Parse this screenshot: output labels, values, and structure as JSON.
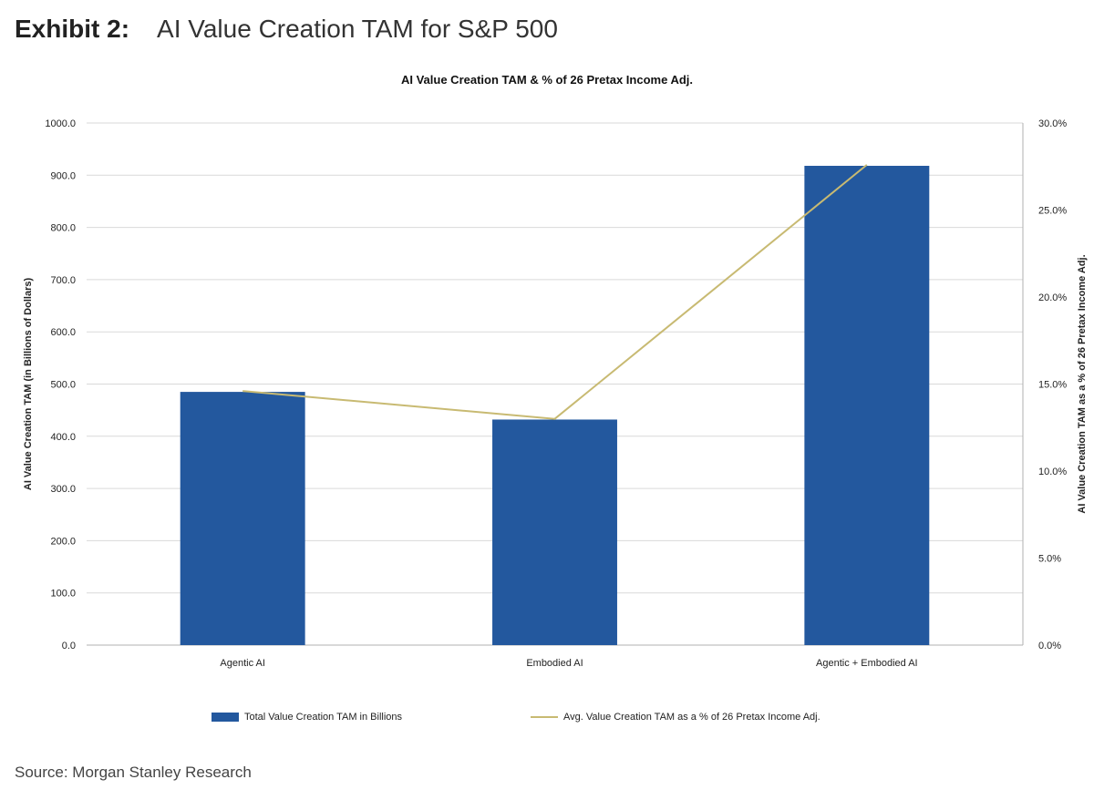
{
  "exhibit": {
    "label": "Exhibit 2:",
    "title": "AI Value Creation TAM for S&P 500"
  },
  "source": "Source: Morgan Stanley Research",
  "colors": {
    "bar": "#23589e",
    "line": "#c8ba72",
    "grid": "#d9d9d9",
    "axis": "#b0b0b0"
  },
  "chart_data": {
    "type": "bar",
    "title": "AI Value Creation TAM & % of 26 Pretax Income Adj.",
    "categories": [
      "Agentic AI",
      "Embodied AI",
      "Agentic + Embodied AI"
    ],
    "ylabel": "AI Value Creation TAM (in Billions of Dollars)",
    "y2label": "AI Value Creation TAM as a % of 26 Pretax Income Adj.",
    "ylim": [
      0,
      1000
    ],
    "y2lim": [
      0,
      30
    ],
    "yticks": [
      "0.0",
      "100.0",
      "200.0",
      "300.0",
      "400.0",
      "500.0",
      "600.0",
      "700.0",
      "800.0",
      "900.0",
      "1000.0"
    ],
    "y2ticks": [
      "0.0%",
      "5.0%",
      "10.0%",
      "15.0%",
      "20.0%",
      "25.0%",
      "30.0%"
    ],
    "grid": true,
    "legend_position": "bottom",
    "series": [
      {
        "name": "Total Value Creation TAM in Billions",
        "type": "bar",
        "axis": "left",
        "values": [
          485,
          432,
          918
        ]
      },
      {
        "name": "Avg. Value Creation TAM as a % of 26 Pretax Income Adj.",
        "type": "line",
        "axis": "right",
        "values": [
          14.6,
          13.0,
          27.6
        ]
      }
    ]
  }
}
